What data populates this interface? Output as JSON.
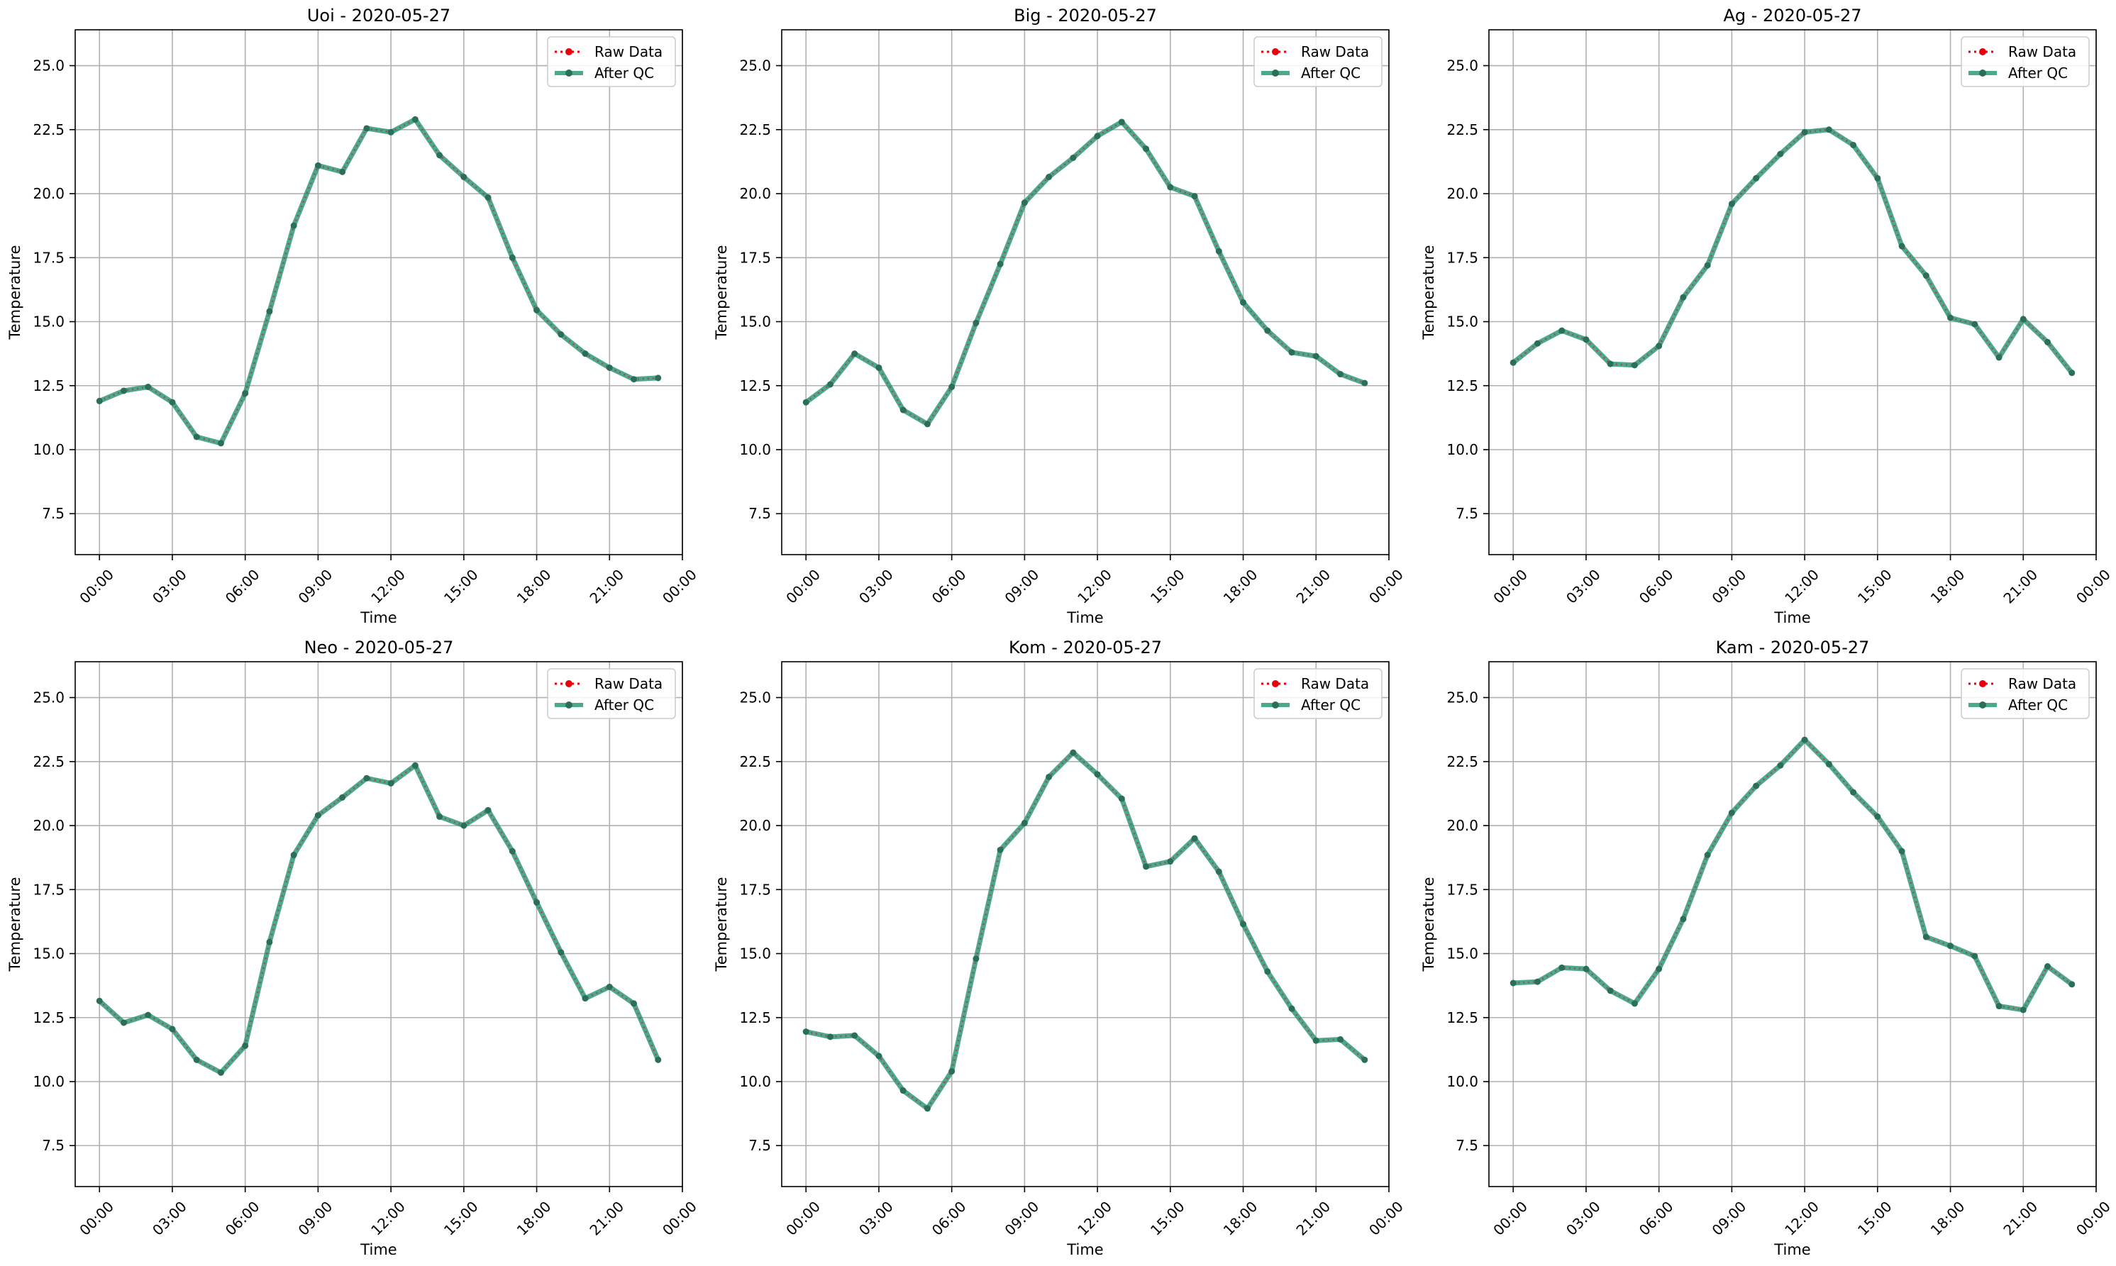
{
  "colors": {
    "raw": "#e8000b",
    "after_qc": "#2e9a78",
    "grid": "#b0b0b0",
    "frame": "#000000"
  },
  "legend": {
    "raw_label": "Raw Data",
    "qc_label": "After QC"
  },
  "chart_data": [
    {
      "type": "line",
      "title": "Uoi - 2020-05-27",
      "xlabel": "Time",
      "ylabel": "Temperature",
      "x": [
        "00:00",
        "01:00",
        "02:00",
        "03:00",
        "04:00",
        "05:00",
        "06:00",
        "07:00",
        "08:00",
        "09:00",
        "10:00",
        "11:00",
        "12:00",
        "13:00",
        "14:00",
        "15:00",
        "16:00",
        "17:00",
        "18:00",
        "19:00",
        "20:00",
        "21:00",
        "22:00",
        "23:00"
      ],
      "xlim": [
        "-01:00",
        "24:00"
      ],
      "xticks": [
        "00:00",
        "03:00",
        "06:00",
        "09:00",
        "12:00",
        "15:00",
        "18:00",
        "21:00",
        "00:00"
      ],
      "ylim": [
        5.9,
        26.4
      ],
      "yticks": [
        "7.5",
        "10.0",
        "12.5",
        "15.0",
        "17.5",
        "20.0",
        "22.5",
        "25.0"
      ],
      "grid": true,
      "legend_position": "upper right",
      "series": [
        {
          "name": "Raw Data",
          "values": [
            11.9,
            12.3,
            12.45,
            11.85,
            10.5,
            10.25,
            12.2,
            15.4,
            18.75,
            21.1,
            20.85,
            22.55,
            22.4,
            22.9,
            21.5,
            20.65,
            19.85,
            17.5,
            15.45,
            14.5,
            13.75,
            13.2,
            12.75,
            12.8
          ]
        },
        {
          "name": "After QC",
          "values": [
            11.9,
            12.3,
            12.45,
            11.85,
            10.5,
            10.25,
            12.2,
            15.4,
            18.75,
            21.1,
            20.85,
            22.55,
            22.4,
            22.9,
            21.5,
            20.65,
            19.85,
            17.5,
            15.45,
            14.5,
            13.75,
            13.2,
            12.75,
            12.8
          ]
        }
      ]
    },
    {
      "type": "line",
      "title": "Big - 2020-05-27",
      "xlabel": "Time",
      "ylabel": "Temperature",
      "x": [
        "00:00",
        "01:00",
        "02:00",
        "03:00",
        "04:00",
        "05:00",
        "06:00",
        "07:00",
        "08:00",
        "09:00",
        "10:00",
        "11:00",
        "12:00",
        "13:00",
        "14:00",
        "15:00",
        "16:00",
        "17:00",
        "18:00",
        "19:00",
        "20:00",
        "21:00",
        "22:00",
        "23:00"
      ],
      "xlim": [
        "-01:00",
        "24:00"
      ],
      "xticks": [
        "00:00",
        "03:00",
        "06:00",
        "09:00",
        "12:00",
        "15:00",
        "18:00",
        "21:00",
        "00:00"
      ],
      "ylim": [
        5.9,
        26.4
      ],
      "yticks": [
        "7.5",
        "10.0",
        "12.5",
        "15.0",
        "17.5",
        "20.0",
        "22.5",
        "25.0"
      ],
      "grid": true,
      "legend_position": "upper right",
      "series": [
        {
          "name": "Raw Data",
          "values": [
            11.85,
            12.55,
            13.75,
            13.2,
            11.55,
            11.0,
            12.45,
            14.95,
            17.25,
            19.65,
            20.65,
            21.4,
            22.25,
            22.8,
            21.75,
            20.25,
            19.9,
            17.75,
            15.75,
            14.65,
            13.8,
            13.65,
            12.95,
            12.6
          ]
        },
        {
          "name": "After QC",
          "values": [
            11.85,
            12.55,
            13.75,
            13.2,
            11.55,
            11.0,
            12.45,
            14.95,
            17.25,
            19.65,
            20.65,
            21.4,
            22.25,
            22.8,
            21.75,
            20.25,
            19.9,
            17.75,
            15.75,
            14.65,
            13.8,
            13.65,
            12.95,
            12.6
          ]
        }
      ]
    },
    {
      "type": "line",
      "title": "Ag - 2020-05-27",
      "xlabel": "Time",
      "ylabel": "Temperature",
      "x": [
        "00:00",
        "01:00",
        "02:00",
        "03:00",
        "04:00",
        "05:00",
        "06:00",
        "07:00",
        "08:00",
        "09:00",
        "10:00",
        "11:00",
        "12:00",
        "13:00",
        "14:00",
        "15:00",
        "16:00",
        "17:00",
        "18:00",
        "19:00",
        "20:00",
        "21:00",
        "22:00",
        "23:00"
      ],
      "xlim": [
        "-01:00",
        "24:00"
      ],
      "xticks": [
        "00:00",
        "03:00",
        "06:00",
        "09:00",
        "12:00",
        "15:00",
        "18:00",
        "21:00",
        "00:00"
      ],
      "ylim": [
        5.9,
        26.4
      ],
      "yticks": [
        "7.5",
        "10.0",
        "12.5",
        "15.0",
        "17.5",
        "20.0",
        "22.5",
        "25.0"
      ],
      "grid": true,
      "legend_position": "upper right",
      "series": [
        {
          "name": "Raw Data",
          "values": [
            13.4,
            14.15,
            14.65,
            14.3,
            13.35,
            13.3,
            14.05,
            15.95,
            17.2,
            19.6,
            20.6,
            21.55,
            22.4,
            22.5,
            21.9,
            20.6,
            17.95,
            16.8,
            15.15,
            14.9,
            13.6,
            15.1,
            14.2,
            13.0
          ]
        },
        {
          "name": "After QC",
          "values": [
            13.4,
            14.15,
            14.65,
            14.3,
            13.35,
            13.3,
            14.05,
            15.95,
            17.2,
            19.6,
            20.6,
            21.55,
            22.4,
            22.5,
            21.9,
            20.6,
            17.95,
            16.8,
            15.15,
            14.9,
            13.6,
            15.1,
            14.2,
            13.0
          ]
        }
      ]
    },
    {
      "type": "line",
      "title": "Neo - 2020-05-27",
      "xlabel": "Time",
      "ylabel": "Temperature",
      "x": [
        "00:00",
        "01:00",
        "02:00",
        "03:00",
        "04:00",
        "05:00",
        "06:00",
        "07:00",
        "08:00",
        "09:00",
        "10:00",
        "11:00",
        "12:00",
        "13:00",
        "14:00",
        "15:00",
        "16:00",
        "17:00",
        "18:00",
        "19:00",
        "20:00",
        "21:00",
        "22:00",
        "23:00"
      ],
      "xlim": [
        "-01:00",
        "24:00"
      ],
      "xticks": [
        "00:00",
        "03:00",
        "06:00",
        "09:00",
        "12:00",
        "15:00",
        "18:00",
        "21:00",
        "00:00"
      ],
      "ylim": [
        5.9,
        26.4
      ],
      "yticks": [
        "7.5",
        "10.0",
        "12.5",
        "15.0",
        "17.5",
        "20.0",
        "22.5",
        "25.0"
      ],
      "grid": true,
      "legend_position": "upper right",
      "series": [
        {
          "name": "Raw Data",
          "values": [
            13.15,
            12.3,
            12.6,
            12.05,
            10.85,
            10.35,
            11.4,
            15.45,
            18.85,
            20.4,
            21.1,
            21.85,
            21.65,
            22.35,
            20.35,
            20.0,
            20.6,
            19.0,
            17.0,
            15.05,
            13.25,
            13.7,
            13.05,
            10.85
          ]
        },
        {
          "name": "After QC",
          "values": [
            13.15,
            12.3,
            12.6,
            12.05,
            10.85,
            10.35,
            11.4,
            15.45,
            18.85,
            20.4,
            21.1,
            21.85,
            21.65,
            22.35,
            20.35,
            20.0,
            20.6,
            19.0,
            17.0,
            15.05,
            13.25,
            13.7,
            13.05,
            10.85
          ]
        }
      ]
    },
    {
      "type": "line",
      "title": "Kom - 2020-05-27",
      "xlabel": "Time",
      "ylabel": "Temperature",
      "x": [
        "00:00",
        "01:00",
        "02:00",
        "03:00",
        "04:00",
        "05:00",
        "06:00",
        "07:00",
        "08:00",
        "09:00",
        "10:00",
        "11:00",
        "12:00",
        "13:00",
        "14:00",
        "15:00",
        "16:00",
        "17:00",
        "18:00",
        "19:00",
        "20:00",
        "21:00",
        "22:00",
        "23:00"
      ],
      "xlim": [
        "-01:00",
        "24:00"
      ],
      "xticks": [
        "00:00",
        "03:00",
        "06:00",
        "09:00",
        "12:00",
        "15:00",
        "18:00",
        "21:00",
        "00:00"
      ],
      "ylim": [
        5.9,
        26.4
      ],
      "yticks": [
        "7.5",
        "10.0",
        "12.5",
        "15.0",
        "17.5",
        "20.0",
        "22.5",
        "25.0"
      ],
      "grid": true,
      "legend_position": "upper right",
      "series": [
        {
          "name": "Raw Data",
          "values": [
            11.95,
            11.75,
            11.8,
            11.0,
            9.65,
            8.95,
            10.4,
            14.8,
            19.05,
            20.1,
            21.9,
            22.85,
            22.0,
            21.05,
            18.4,
            18.6,
            19.5,
            18.2,
            16.15,
            14.3,
            12.85,
            11.6,
            11.65,
            10.85
          ]
        },
        {
          "name": "After QC",
          "values": [
            11.95,
            11.75,
            11.8,
            11.0,
            9.65,
            8.95,
            10.4,
            14.8,
            19.05,
            20.1,
            21.9,
            22.85,
            22.0,
            21.05,
            18.4,
            18.6,
            19.5,
            18.2,
            16.15,
            14.3,
            12.85,
            11.6,
            11.65,
            10.85
          ]
        }
      ]
    },
    {
      "type": "line",
      "title": "Kam - 2020-05-27",
      "xlabel": "Time",
      "ylabel": "Temperature",
      "x": [
        "00:00",
        "01:00",
        "02:00",
        "03:00",
        "04:00",
        "05:00",
        "06:00",
        "07:00",
        "08:00",
        "09:00",
        "10:00",
        "11:00",
        "12:00",
        "13:00",
        "14:00",
        "15:00",
        "16:00",
        "17:00",
        "18:00",
        "19:00",
        "20:00",
        "21:00",
        "22:00",
        "23:00"
      ],
      "xlim": [
        "-01:00",
        "24:00"
      ],
      "xticks": [
        "00:00",
        "03:00",
        "06:00",
        "09:00",
        "12:00",
        "15:00",
        "18:00",
        "21:00",
        "00:00"
      ],
      "ylim": [
        5.9,
        26.4
      ],
      "yticks": [
        "7.5",
        "10.0",
        "12.5",
        "15.0",
        "17.5",
        "20.0",
        "22.5",
        "25.0"
      ],
      "grid": true,
      "legend_position": "upper right",
      "series": [
        {
          "name": "Raw Data",
          "values": [
            13.85,
            13.9,
            14.45,
            14.4,
            13.55,
            13.05,
            14.4,
            16.35,
            18.85,
            20.5,
            21.55,
            22.35,
            23.35,
            22.4,
            21.3,
            20.35,
            19.0,
            15.65,
            15.3,
            14.9,
            12.95,
            12.8,
            14.5,
            13.8
          ]
        },
        {
          "name": "After QC",
          "values": [
            13.85,
            13.9,
            14.45,
            14.4,
            13.55,
            13.05,
            14.4,
            16.35,
            18.85,
            20.5,
            21.55,
            22.35,
            23.35,
            22.4,
            21.3,
            20.35,
            19.0,
            15.65,
            15.3,
            14.9,
            12.95,
            12.8,
            14.5,
            13.8
          ]
        }
      ]
    }
  ]
}
